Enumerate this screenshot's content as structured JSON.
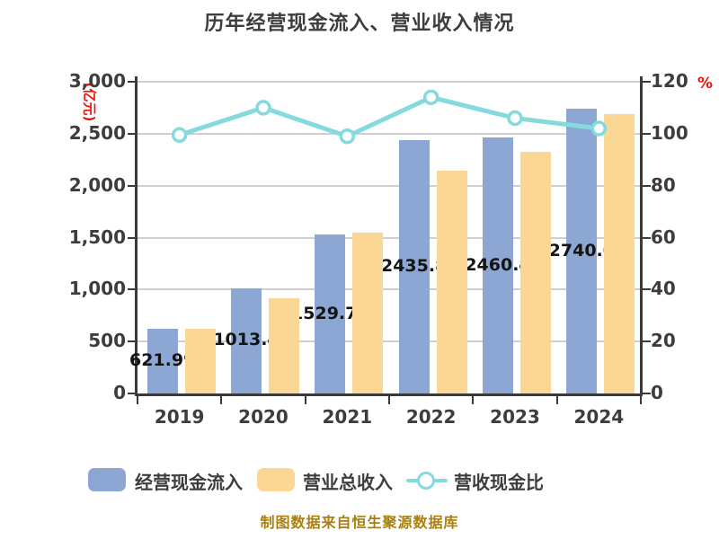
{
  "title": "历年经营现金流入、营业收入情况",
  "footer": "制图数据来自恒生聚源数据库",
  "y_left": {
    "unit": "(亿元)",
    "ticks": [
      "3,000",
      "2,500",
      "2,000",
      "1,500",
      "1,000",
      "500",
      "0"
    ],
    "max": 3000
  },
  "y_right": {
    "unit": "%",
    "ticks": [
      "120",
      "100",
      "80",
      "60",
      "40",
      "20",
      "0"
    ],
    "max": 120
  },
  "legend": [
    {
      "label": "经营现金流入"
    },
    {
      "label": "营业总收入"
    },
    {
      "label": "营收现金比"
    }
  ],
  "colors": {
    "cash_inflow_bar": "#8da7d5",
    "revenue_bar": "#fad795",
    "ratio_line": "#85dadd",
    "marker_fill": "#ffffff",
    "unit_label": "#ee1409",
    "grid": "#cfcfcf",
    "axis": "#3a3a3a",
    "footer_text": "#a9800e"
  },
  "chart_data": {
    "type": "bar",
    "categories": [
      "2019",
      "2020",
      "2021",
      "2022",
      "2023",
      "2024"
    ],
    "series": [
      {
        "name": "经营现金流入",
        "type": "bar",
        "axis": "left",
        "values": [
          621.99,
          1013.4,
          1529.74,
          2435.8,
          2460.4,
          2740.0
        ],
        "labels": [
          "621.99",
          "1013.4",
          "1529.74",
          "2435.8",
          "2460.4",
          "2740.0"
        ]
      },
      {
        "name": "营业总收入",
        "type": "bar",
        "axis": "left",
        "values": [
          625,
          920,
          1545,
          2142,
          2325,
          2690
        ]
      },
      {
        "name": "营收现金比",
        "type": "line",
        "axis": "right",
        "values": [
          99.5,
          110,
          99,
          114,
          106,
          102
        ]
      }
    ],
    "ylim_left": [
      0,
      3000
    ],
    "ylim_right": [
      0,
      120
    ],
    "grid": true,
    "legend_position": "bottom"
  }
}
